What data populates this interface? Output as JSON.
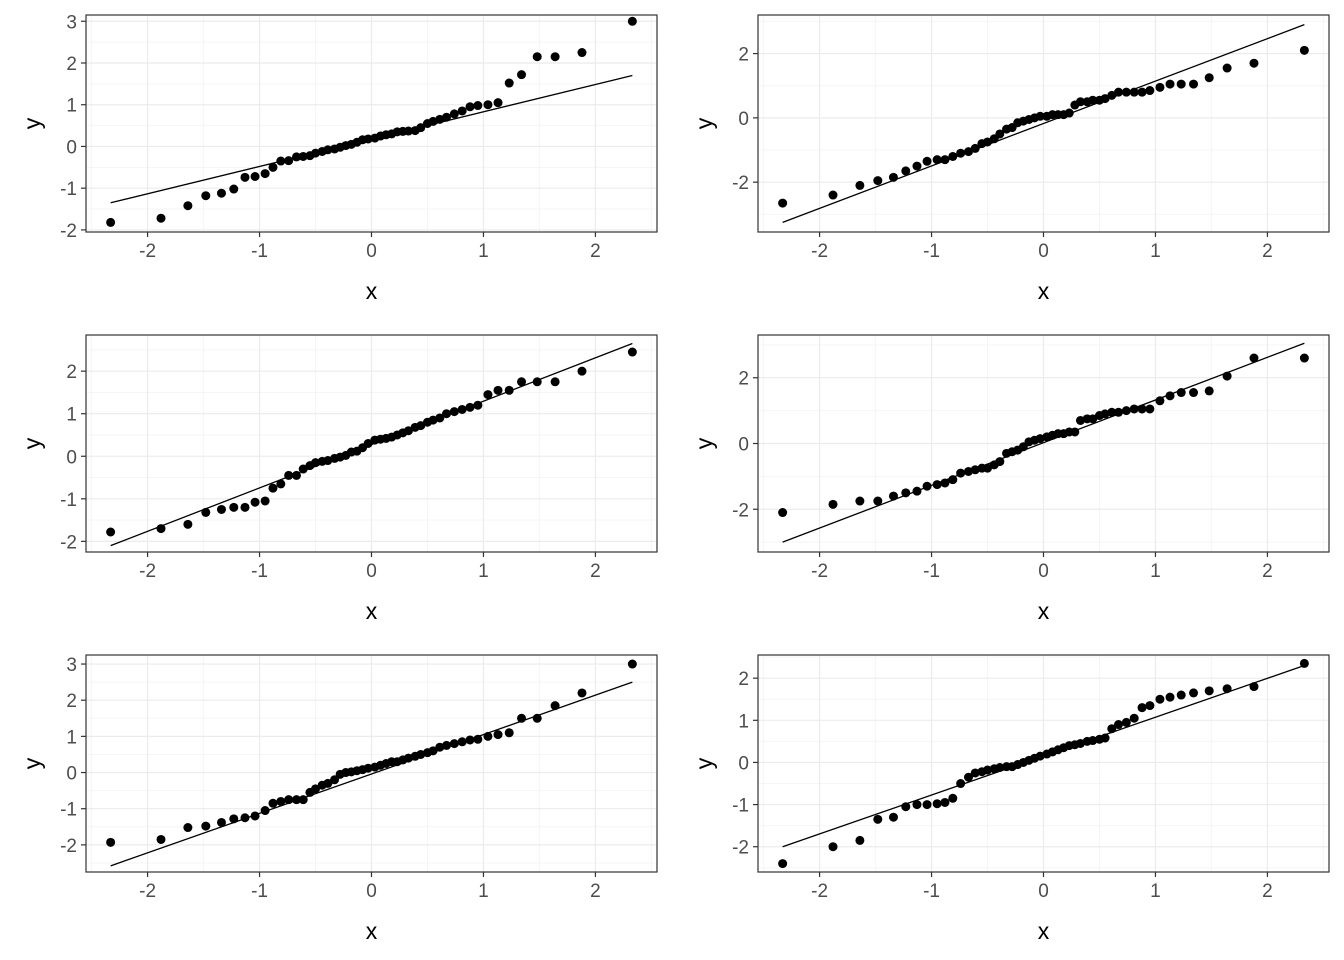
{
  "figure": {
    "colors": {
      "background": "#ffffff",
      "panel_border": "#333333",
      "grid_major": "#ebebeb",
      "grid_minor": "#f5f5f5",
      "points": "#000000",
      "reference_line": "#000000",
      "tick_text": "#4d4d4d"
    }
  },
  "chart_data": [
    {
      "type": "scatter",
      "title": "",
      "xlabel": "x",
      "ylabel": "y",
      "xlim": [
        -2.55,
        2.55
      ],
      "ylim": [
        -2.05,
        3.15
      ],
      "xticks": [
        -2,
        -1,
        0,
        1,
        2
      ],
      "xtick_labels": [
        "-2",
        "-1",
        "0",
        "1",
        "2"
      ],
      "yticks": [
        -2,
        -1,
        0,
        1,
        2,
        3
      ],
      "ytick_labels": [
        "-2",
        "-1",
        "0",
        "1",
        "2",
        "3"
      ],
      "grid": true,
      "x": [
        -2.33,
        -1.88,
        -1.64,
        -1.48,
        -1.34,
        -1.23,
        -1.13,
        -1.04,
        -0.95,
        -0.88,
        -0.81,
        -0.74,
        -0.67,
        -0.61,
        -0.55,
        -0.5,
        -0.44,
        -0.39,
        -0.33,
        -0.28,
        -0.23,
        -0.18,
        -0.13,
        -0.08,
        -0.03,
        0.03,
        0.08,
        0.13,
        0.18,
        0.23,
        0.28,
        0.33,
        0.39,
        0.44,
        0.5,
        0.55,
        0.61,
        0.67,
        0.74,
        0.81,
        0.88,
        0.95,
        1.04,
        1.13,
        1.23,
        1.34,
        1.48,
        1.64,
        1.88,
        2.33
      ],
      "y": [
        -1.82,
        -1.72,
        -1.42,
        -1.18,
        -1.12,
        -1.02,
        -0.74,
        -0.72,
        -0.65,
        -0.5,
        -0.35,
        -0.34,
        -0.25,
        -0.24,
        -0.22,
        -0.16,
        -0.12,
        -0.08,
        -0.06,
        -0.02,
        0.02,
        0.05,
        0.1,
        0.16,
        0.18,
        0.2,
        0.25,
        0.28,
        0.3,
        0.35,
        0.36,
        0.37,
        0.38,
        0.45,
        0.55,
        0.6,
        0.65,
        0.7,
        0.78,
        0.85,
        0.95,
        0.98,
        1.0,
        1.05,
        1.52,
        1.72,
        2.15,
        2.15,
        2.25,
        3.0
      ],
      "reference_line": {
        "x": [
          -2.33,
          2.33
        ],
        "y": [
          -1.35,
          1.7
        ]
      }
    },
    {
      "type": "scatter",
      "title": "",
      "xlabel": "x",
      "ylabel": "y",
      "xlim": [
        -2.55,
        2.55
      ],
      "ylim": [
        -3.55,
        3.2
      ],
      "xticks": [
        -2,
        -1,
        0,
        1,
        2
      ],
      "xtick_labels": [
        "-2",
        "-1",
        "0",
        "1",
        "2"
      ],
      "yticks": [
        -2,
        0,
        2
      ],
      "ytick_labels": [
        "-2",
        "0",
        "2"
      ],
      "grid": true,
      "x": [
        -2.33,
        -1.88,
        -1.64,
        -1.48,
        -1.34,
        -1.23,
        -1.13,
        -1.04,
        -0.95,
        -0.88,
        -0.81,
        -0.74,
        -0.67,
        -0.61,
        -0.55,
        -0.5,
        -0.44,
        -0.39,
        -0.33,
        -0.28,
        -0.23,
        -0.18,
        -0.13,
        -0.08,
        -0.03,
        0.03,
        0.08,
        0.13,
        0.18,
        0.23,
        0.28,
        0.33,
        0.39,
        0.44,
        0.5,
        0.55,
        0.61,
        0.67,
        0.74,
        0.81,
        0.88,
        0.95,
        1.04,
        1.13,
        1.23,
        1.34,
        1.48,
        1.64,
        1.88,
        2.33
      ],
      "y": [
        -2.65,
        -2.4,
        -2.1,
        -1.95,
        -1.85,
        -1.65,
        -1.5,
        -1.35,
        -1.3,
        -1.3,
        -1.2,
        -1.1,
        -1.05,
        -0.95,
        -0.8,
        -0.75,
        -0.65,
        -0.5,
        -0.35,
        -0.3,
        -0.15,
        -0.1,
        -0.05,
        0.0,
        0.05,
        0.05,
        0.1,
        0.1,
        0.1,
        0.15,
        0.4,
        0.5,
        0.5,
        0.55,
        0.55,
        0.6,
        0.7,
        0.8,
        0.8,
        0.8,
        0.8,
        0.85,
        0.95,
        1.05,
        1.05,
        1.05,
        1.25,
        1.55,
        1.7,
        2.1
      ],
      "reference_line": {
        "x": [
          -2.33,
          2.33
        ],
        "y": [
          -3.25,
          2.9
        ]
      }
    },
    {
      "type": "scatter",
      "title": "",
      "xlabel": "x",
      "ylabel": "y",
      "xlim": [
        -2.55,
        2.55
      ],
      "ylim": [
        -2.25,
        2.85
      ],
      "xticks": [
        -2,
        -1,
        0,
        1,
        2
      ],
      "xtick_labels": [
        "-2",
        "-1",
        "0",
        "1",
        "2"
      ],
      "yticks": [
        -2,
        -1,
        0,
        1,
        2
      ],
      "ytick_labels": [
        "-2",
        "-1",
        "0",
        "1",
        "2"
      ],
      "grid": true,
      "x": [
        -2.33,
        -1.88,
        -1.64,
        -1.48,
        -1.34,
        -1.23,
        -1.13,
        -1.04,
        -0.95,
        -0.88,
        -0.81,
        -0.74,
        -0.67,
        -0.61,
        -0.55,
        -0.5,
        -0.44,
        -0.39,
        -0.33,
        -0.28,
        -0.23,
        -0.18,
        -0.13,
        -0.08,
        -0.03,
        0.03,
        0.08,
        0.13,
        0.18,
        0.23,
        0.28,
        0.33,
        0.39,
        0.44,
        0.5,
        0.55,
        0.61,
        0.67,
        0.74,
        0.81,
        0.88,
        0.95,
        1.04,
        1.13,
        1.23,
        1.34,
        1.48,
        1.64,
        1.88,
        2.33
      ],
      "y": [
        -1.78,
        -1.7,
        -1.6,
        -1.32,
        -1.25,
        -1.2,
        -1.2,
        -1.08,
        -1.05,
        -0.75,
        -0.65,
        -0.45,
        -0.45,
        -0.3,
        -0.22,
        -0.15,
        -0.12,
        -0.1,
        -0.05,
        -0.02,
        0.02,
        0.1,
        0.12,
        0.2,
        0.3,
        0.38,
        0.4,
        0.42,
        0.45,
        0.5,
        0.55,
        0.6,
        0.68,
        0.72,
        0.8,
        0.85,
        0.9,
        1.0,
        1.05,
        1.1,
        1.15,
        1.2,
        1.45,
        1.55,
        1.55,
        1.75,
        1.75,
        1.75,
        2.0,
        2.45
      ],
      "reference_line": {
        "x": [
          -2.33,
          2.33
        ],
        "y": [
          -2.1,
          2.65
        ]
      }
    },
    {
      "type": "scatter",
      "title": "",
      "xlabel": "x",
      "ylabel": "y",
      "xlim": [
        -2.55,
        2.55
      ],
      "ylim": [
        -3.3,
        3.3
      ],
      "xticks": [
        -2,
        -1,
        0,
        1,
        2
      ],
      "xtick_labels": [
        "-2",
        "-1",
        "0",
        "1",
        "2"
      ],
      "yticks": [
        -2,
        0,
        2
      ],
      "ytick_labels": [
        "-2",
        "0",
        "2"
      ],
      "grid": true,
      "x": [
        -2.33,
        -1.88,
        -1.64,
        -1.48,
        -1.34,
        -1.23,
        -1.13,
        -1.04,
        -0.95,
        -0.88,
        -0.81,
        -0.74,
        -0.67,
        -0.61,
        -0.55,
        -0.5,
        -0.44,
        -0.39,
        -0.33,
        -0.28,
        -0.23,
        -0.18,
        -0.13,
        -0.08,
        -0.03,
        0.03,
        0.08,
        0.13,
        0.18,
        0.23,
        0.28,
        0.33,
        0.39,
        0.44,
        0.5,
        0.55,
        0.61,
        0.67,
        0.74,
        0.81,
        0.88,
        0.95,
        1.04,
        1.13,
        1.23,
        1.34,
        1.48,
        1.64,
        1.88,
        2.33
      ],
      "y": [
        -2.1,
        -1.85,
        -1.75,
        -1.75,
        -1.6,
        -1.5,
        -1.45,
        -1.3,
        -1.25,
        -1.2,
        -1.1,
        -0.9,
        -0.85,
        -0.8,
        -0.75,
        -0.75,
        -0.65,
        -0.55,
        -0.3,
        -0.25,
        -0.2,
        -0.1,
        0.05,
        0.1,
        0.15,
        0.2,
        0.25,
        0.3,
        0.3,
        0.35,
        0.35,
        0.7,
        0.75,
        0.75,
        0.85,
        0.9,
        0.95,
        0.95,
        1.0,
        1.05,
        1.05,
        1.05,
        1.3,
        1.45,
        1.55,
        1.55,
        1.6,
        2.05,
        2.6,
        2.6
      ],
      "reference_line": {
        "x": [
          -2.33,
          2.33
        ],
        "y": [
          -3.0,
          3.05
        ]
      }
    },
    {
      "type": "scatter",
      "title": "",
      "xlabel": "x",
      "ylabel": "y",
      "xlim": [
        -2.55,
        2.55
      ],
      "ylim": [
        -2.75,
        3.25
      ],
      "xticks": [
        -2,
        -1,
        0,
        1,
        2
      ],
      "xtick_labels": [
        "-2",
        "-1",
        "0",
        "1",
        "2"
      ],
      "yticks": [
        -2,
        -1,
        0,
        1,
        2,
        3
      ],
      "ytick_labels": [
        "-2",
        "-1",
        "0",
        "1",
        "2",
        "3"
      ],
      "grid": true,
      "x": [
        -2.33,
        -1.88,
        -1.64,
        -1.48,
        -1.34,
        -1.23,
        -1.13,
        -1.04,
        -0.95,
        -0.88,
        -0.81,
        -0.74,
        -0.67,
        -0.61,
        -0.55,
        -0.5,
        -0.44,
        -0.39,
        -0.33,
        -0.28,
        -0.23,
        -0.18,
        -0.13,
        -0.08,
        -0.03,
        0.03,
        0.08,
        0.13,
        0.18,
        0.23,
        0.28,
        0.33,
        0.39,
        0.44,
        0.5,
        0.55,
        0.61,
        0.67,
        0.74,
        0.81,
        0.88,
        0.95,
        1.04,
        1.13,
        1.23,
        1.34,
        1.48,
        1.64,
        1.88,
        2.33
      ],
      "y": [
        -1.93,
        -1.85,
        -1.52,
        -1.48,
        -1.38,
        -1.28,
        -1.25,
        -1.2,
        -1.05,
        -0.85,
        -0.8,
        -0.75,
        -0.75,
        -0.75,
        -0.55,
        -0.45,
        -0.35,
        -0.3,
        -0.2,
        -0.05,
        0.0,
        0.02,
        0.05,
        0.08,
        0.12,
        0.15,
        0.2,
        0.25,
        0.3,
        0.3,
        0.35,
        0.4,
        0.45,
        0.5,
        0.55,
        0.6,
        0.7,
        0.75,
        0.8,
        0.85,
        0.9,
        0.92,
        1.0,
        1.05,
        1.1,
        1.5,
        1.5,
        1.85,
        2.2,
        3.0
      ],
      "reference_line": {
        "x": [
          -2.33,
          2.33
        ],
        "y": [
          -2.58,
          2.5
        ]
      }
    },
    {
      "type": "scatter",
      "title": "",
      "xlabel": "x",
      "ylabel": "y",
      "xlim": [
        -2.55,
        2.55
      ],
      "ylim": [
        -2.6,
        2.55
      ],
      "xticks": [
        -2,
        -1,
        0,
        1,
        2
      ],
      "xtick_labels": [
        "-2",
        "-1",
        "0",
        "1",
        "2"
      ],
      "yticks": [
        -2,
        -1,
        0,
        1,
        2
      ],
      "ytick_labels": [
        "-2",
        "-1",
        "0",
        "1",
        "2"
      ],
      "grid": true,
      "x": [
        -2.33,
        -1.88,
        -1.64,
        -1.48,
        -1.34,
        -1.23,
        -1.13,
        -1.04,
        -0.95,
        -0.88,
        -0.81,
        -0.74,
        -0.67,
        -0.61,
        -0.55,
        -0.5,
        -0.44,
        -0.39,
        -0.33,
        -0.28,
        -0.23,
        -0.18,
        -0.13,
        -0.08,
        -0.03,
        0.03,
        0.08,
        0.13,
        0.18,
        0.23,
        0.28,
        0.33,
        0.39,
        0.44,
        0.5,
        0.55,
        0.61,
        0.67,
        0.74,
        0.81,
        0.88,
        0.95,
        1.04,
        1.13,
        1.23,
        1.34,
        1.48,
        1.64,
        1.88,
        2.33
      ],
      "y": [
        -2.4,
        -2.0,
        -1.85,
        -1.35,
        -1.3,
        -1.05,
        -1.0,
        -1.0,
        -0.98,
        -0.95,
        -0.85,
        -0.5,
        -0.35,
        -0.25,
        -0.22,
        -0.18,
        -0.15,
        -0.12,
        -0.1,
        -0.1,
        -0.05,
        0.0,
        0.05,
        0.1,
        0.15,
        0.2,
        0.25,
        0.3,
        0.35,
        0.4,
        0.42,
        0.45,
        0.5,
        0.52,
        0.55,
        0.58,
        0.8,
        0.9,
        0.95,
        1.05,
        1.3,
        1.35,
        1.5,
        1.55,
        1.6,
        1.65,
        1.7,
        1.75,
        1.8,
        2.35
      ],
      "reference_line": {
        "x": [
          -2.33,
          2.33
        ],
        "y": [
          -2.0,
          2.3
        ]
      }
    }
  ]
}
